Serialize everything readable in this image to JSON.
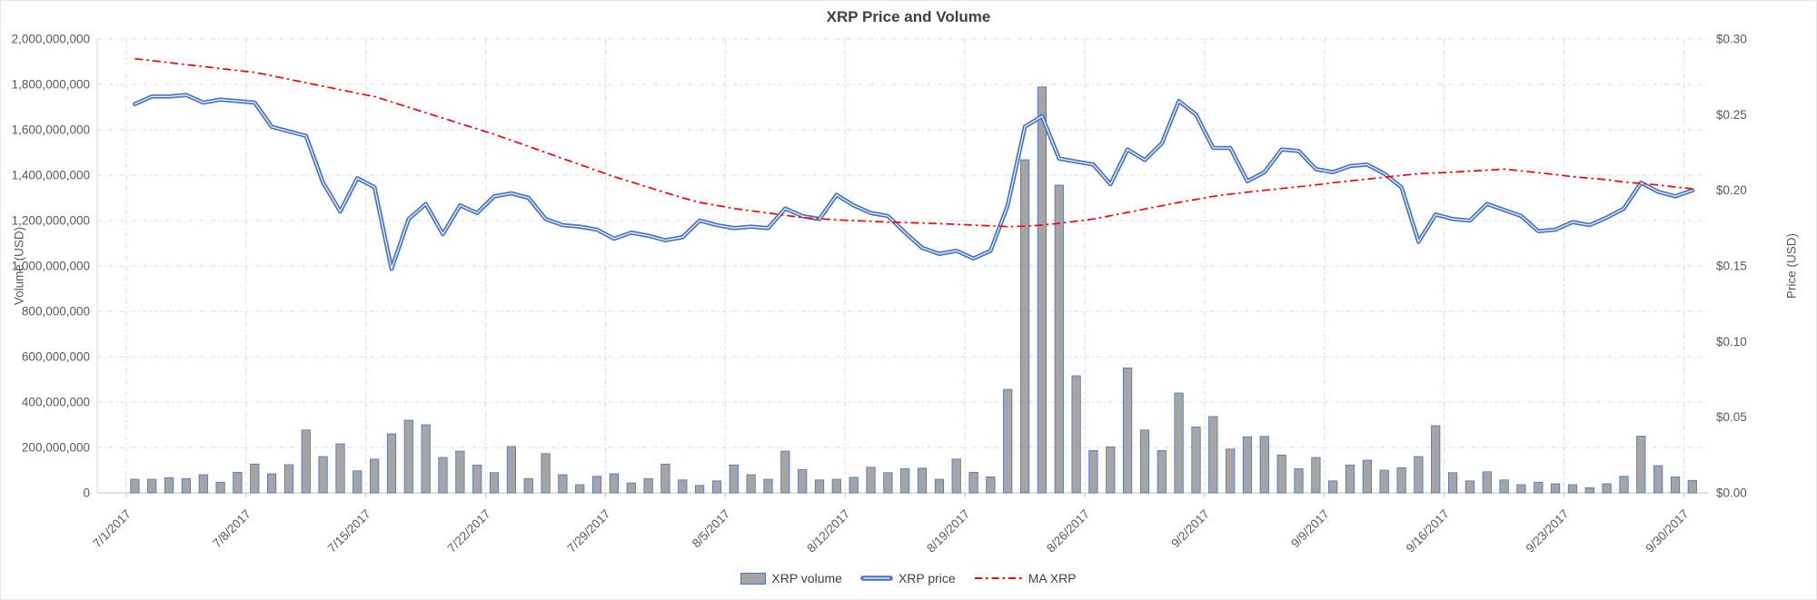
{
  "title": "XRP Price and Volume",
  "legend": {
    "items": [
      {
        "label": "XRP volume",
        "swatch": "gray-bar-with-blue-border",
        "fill": "#A5A5A5",
        "border": "#4472C4"
      },
      {
        "label": "XRP price",
        "swatch": "thick-blue-line-with-white-core",
        "color": "#4472C4"
      },
      {
        "label": "MA XRP",
        "swatch": "red-dash-dot-line",
        "color": "#FF0000"
      }
    ],
    "position": "bottom-center"
  },
  "chart_data": {
    "type": "combo",
    "subtypes": [
      "bar",
      "line",
      "line"
    ],
    "title": "XRP Price and Volume",
    "background": "#FFFFFF",
    "grid": true,
    "gridline_color": "#D9D9D9",
    "axis_text_color": "#595959",
    "left_axis": {
      "title": "Volume (USD)",
      "min": 0,
      "max": 2000000000,
      "tick_step": 200000000,
      "tick_labels": [
        "2,000,000,000",
        "1,800,000,000",
        "1,600,000,000",
        "1,400,000,000",
        "1,200,000,000",
        "1,000,000,000",
        "800,000,000",
        "600,000,000",
        "400,000,000",
        "200,000,000",
        "0"
      ]
    },
    "right_axis": {
      "title": "Price (USD)",
      "min": 0,
      "max": 0.3,
      "tick_step": 0.05,
      "tick_labels": [
        "$0.30",
        "$0.25",
        "$0.20",
        "$0.15",
        "$0.10",
        "$0.05",
        "$0.00"
      ]
    },
    "x_tick_labels": [
      "7/1/2017",
      "7/8/2017",
      "7/15/2017",
      "7/22/2017",
      "7/29/2017",
      "8/5/2017",
      "8/12/2017",
      "8/19/2017",
      "8/26/2017",
      "9/2/2017",
      "9/9/2017",
      "9/16/2017",
      "9/23/2017",
      "9/30/2017"
    ],
    "x_dates": [
      "7/1/2017",
      "7/2/2017",
      "7/3/2017",
      "7/4/2017",
      "7/5/2017",
      "7/6/2017",
      "7/7/2017",
      "7/8/2017",
      "7/9/2017",
      "7/10/2017",
      "7/11/2017",
      "7/12/2017",
      "7/13/2017",
      "7/14/2017",
      "7/15/2017",
      "7/16/2017",
      "7/17/2017",
      "7/18/2017",
      "7/19/2017",
      "7/20/2017",
      "7/21/2017",
      "7/22/2017",
      "7/23/2017",
      "7/24/2017",
      "7/25/2017",
      "7/26/2017",
      "7/27/2017",
      "7/28/2017",
      "7/29/2017",
      "7/30/2017",
      "7/31/2017",
      "8/1/2017",
      "8/2/2017",
      "8/3/2017",
      "8/4/2017",
      "8/5/2017",
      "8/6/2017",
      "8/7/2017",
      "8/8/2017",
      "8/9/2017",
      "8/10/2017",
      "8/11/2017",
      "8/12/2017",
      "8/13/2017",
      "8/14/2017",
      "8/15/2017",
      "8/16/2017",
      "8/17/2017",
      "8/18/2017",
      "8/19/2017",
      "8/20/2017",
      "8/21/2017",
      "8/22/2017",
      "8/23/2017",
      "8/24/2017",
      "8/25/2017",
      "8/26/2017",
      "8/27/2017",
      "8/28/2017",
      "8/29/2017",
      "8/30/2017",
      "8/31/2017",
      "9/1/2017",
      "9/2/2017",
      "9/3/2017",
      "9/4/2017",
      "9/5/2017",
      "9/6/2017",
      "9/7/2017",
      "9/8/2017",
      "9/9/2017",
      "9/10/2017",
      "9/11/2017",
      "9/12/2017",
      "9/13/2017",
      "9/14/2017",
      "9/15/2017",
      "9/16/2017",
      "9/17/2017",
      "9/18/2017",
      "9/19/2017",
      "9/20/2017",
      "9/21/2017",
      "9/22/2017",
      "9/23/2017",
      "9/24/2017",
      "9/25/2017",
      "9/26/2017",
      "9/27/2017",
      "9/28/2017",
      "9/29/2017",
      "9/30/2017"
    ],
    "series": [
      {
        "name": "XRP volume",
        "type": "bar",
        "axis": "left",
        "color": "#A5A5A5",
        "border_color": "#4472C4",
        "values_million_usd": [
          60,
          60,
          67,
          63,
          80,
          47,
          91,
          127,
          84,
          124,
          277,
          160,
          216,
          97,
          149,
          260,
          320,
          300,
          156,
          184,
          123,
          89,
          204,
          63,
          173,
          80,
          36,
          73,
          84,
          44,
          63,
          127,
          57,
          33,
          53,
          123,
          80,
          60,
          184,
          103,
          57,
          60,
          69,
          113,
          89,
          107,
          109,
          60,
          149,
          91,
          71,
          456,
          1468,
          1789,
          1356,
          516,
          187,
          203,
          551,
          277,
          187,
          440,
          291,
          336,
          193,
          247,
          249,
          167,
          107,
          156,
          53,
          123,
          144,
          100,
          111,
          160,
          296,
          89,
          53,
          93,
          57,
          36,
          47,
          40,
          36,
          23,
          40,
          73,
          250,
          120,
          70,
          55
        ]
      },
      {
        "name": "XRP price",
        "type": "line",
        "axis": "right",
        "color": "#4472C4",
        "values_usd": [
          0.257,
          0.262,
          0.262,
          0.263,
          0.258,
          0.26,
          0.259,
          0.258,
          0.242,
          0.239,
          0.236,
          0.205,
          0.186,
          0.208,
          0.202,
          0.148,
          0.181,
          0.191,
          0.171,
          0.19,
          0.185,
          0.196,
          0.198,
          0.195,
          0.181,
          0.177,
          0.176,
          0.174,
          0.168,
          0.172,
          0.17,
          0.167,
          0.169,
          0.18,
          0.177,
          0.175,
          0.176,
          0.175,
          0.188,
          0.183,
          0.181,
          0.197,
          0.19,
          0.185,
          0.183,
          0.172,
          0.162,
          0.158,
          0.16,
          0.155,
          0.16,
          0.19,
          0.242,
          0.249,
          0.221,
          0.219,
          0.217,
          0.204,
          0.227,
          0.22,
          0.231,
          0.259,
          0.25,
          0.228,
          0.228,
          0.206,
          0.212,
          0.227,
          0.226,
          0.214,
          0.212,
          0.216,
          0.217,
          0.211,
          0.202,
          0.166,
          0.184,
          0.181,
          0.18,
          0.191,
          0.187,
          0.183,
          0.173,
          0.174,
          0.179,
          0.177,
          0.182,
          0.188,
          0.205,
          0.199,
          0.196,
          0.2
        ]
      },
      {
        "name": "MA XRP",
        "type": "line",
        "style": "dash-dot",
        "axis": "right",
        "color": "#FF0000",
        "values_usd": [
          0.287,
          0.2857,
          0.2844,
          0.2831,
          0.2818,
          0.2805,
          0.2792,
          0.278,
          0.2757,
          0.2734,
          0.2711,
          0.2688,
          0.2665,
          0.2642,
          0.262,
          0.2584,
          0.2549,
          0.2513,
          0.2477,
          0.2441,
          0.2406,
          0.237,
          0.233,
          0.229,
          0.225,
          0.221,
          0.217,
          0.213,
          0.209,
          0.2055,
          0.202,
          0.1985,
          0.195,
          0.192,
          0.19,
          0.188,
          0.1865,
          0.185,
          0.1835,
          0.182,
          0.1812,
          0.1805,
          0.18,
          0.1795,
          0.179,
          0.1787,
          0.1784,
          0.178,
          0.1775,
          0.177,
          0.1765,
          0.176,
          0.1763,
          0.177,
          0.1782,
          0.1796,
          0.181,
          0.1832,
          0.1854,
          0.1876,
          0.1898,
          0.192,
          0.194,
          0.196,
          0.1975,
          0.1988,
          0.2,
          0.2012,
          0.2024,
          0.2036,
          0.205,
          0.2062,
          0.2074,
          0.2086,
          0.2098,
          0.211,
          0.2115,
          0.212,
          0.2127,
          0.2133,
          0.214,
          0.2128,
          0.2116,
          0.2104,
          0.209,
          0.208,
          0.207,
          0.2055,
          0.2045,
          0.2035,
          0.2022,
          0.201
        ]
      }
    ],
    "legend_position": "bottom"
  }
}
